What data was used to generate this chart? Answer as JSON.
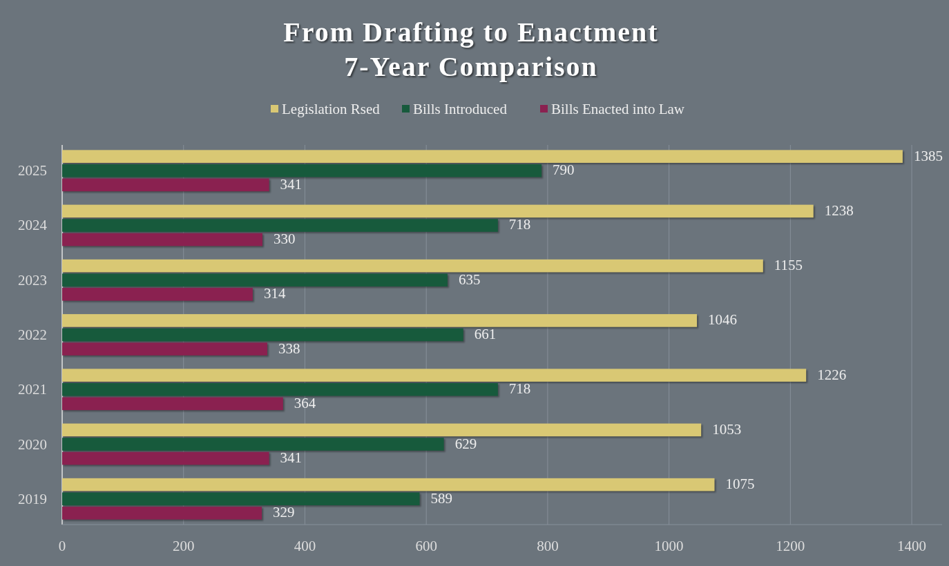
{
  "chart_data": {
    "type": "bar",
    "orientation": "horizontal",
    "title": "From Drafting to Enactment\n7-Year Comparison",
    "categories": [
      "2025",
      "2024",
      "2023",
      "2022",
      "2021",
      "2020",
      "2019"
    ],
    "series": [
      {
        "name": "Legislation Rsed",
        "color": "#d9c874",
        "values": [
          1385,
          1238,
          1155,
          1046,
          1226,
          1053,
          1075
        ]
      },
      {
        "name": "Bills Introduced",
        "color": "#175a3c",
        "values": [
          790,
          718,
          635,
          661,
          718,
          629,
          589
        ]
      },
      {
        "name": "Bills Enacted into Law",
        "color": "#8a2150",
        "values": [
          341,
          330,
          314,
          338,
          364,
          341,
          329
        ]
      }
    ],
    "xlim": [
      0,
      1450
    ],
    "xticks": [
      0,
      200,
      400,
      600,
      800,
      1000,
      1200,
      1400
    ],
    "grid": "x",
    "legend": "top",
    "data_labels": true
  }
}
